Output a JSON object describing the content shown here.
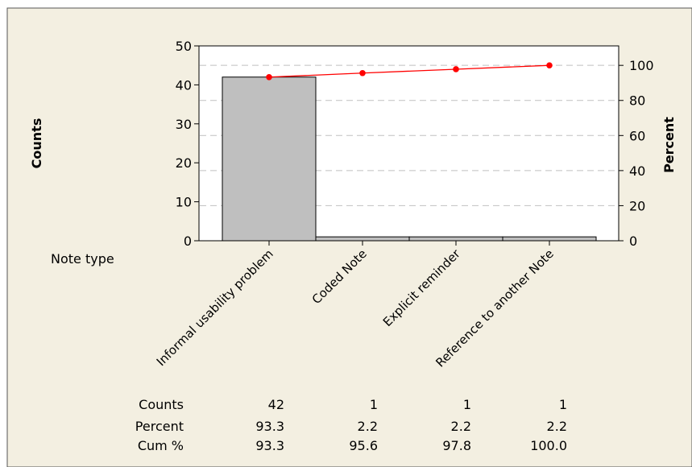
{
  "chart_data": {
    "type": "pareto",
    "categories": [
      "Informal usability problem",
      "Coded Note",
      "Explicit reminder",
      "Reference to another Note"
    ],
    "counts": [
      42,
      1,
      1,
      1
    ],
    "percent": [
      93.3,
      2.2,
      2.2,
      2.2
    ],
    "cum_percent": [
      93.3,
      95.6,
      97.8,
      100.0
    ],
    "percent_labels": [
      "93.3",
      "2.2",
      "2.2",
      "2.2"
    ],
    "cum_percent_labels": [
      "93.3",
      "95.6",
      "97.8",
      "100.0"
    ],
    "ylabel_left": "Counts",
    "ylabel_right": "Percent",
    "xlabel": "Note type",
    "ylim_left": [
      0,
      50
    ],
    "ylim_right": [
      0,
      111.1
    ],
    "left_ticks": [
      0,
      10,
      20,
      30,
      40,
      50
    ],
    "right_ticks": [
      0,
      20,
      40,
      60,
      80,
      100
    ],
    "gridlines_percent": [
      20,
      40,
      60,
      80,
      100
    ],
    "table_row_labels": [
      "Counts",
      "Percent",
      "Cum %"
    ],
    "colors": {
      "background": "#f3efe1",
      "plot_background": "#ffffff",
      "bar_fill": "#bfbfbf",
      "line": "#ff0000",
      "grid": "#c0c0c0"
    }
  }
}
